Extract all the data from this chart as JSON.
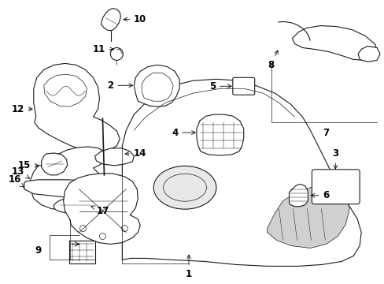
{
  "background_color": "#ffffff",
  "line_color": "#1a1a1a",
  "figure_width": 4.89,
  "figure_height": 3.6,
  "dpi": 100,
  "parts": {
    "label_fontsize": 8.5,
    "arrow_lw": 0.6
  }
}
